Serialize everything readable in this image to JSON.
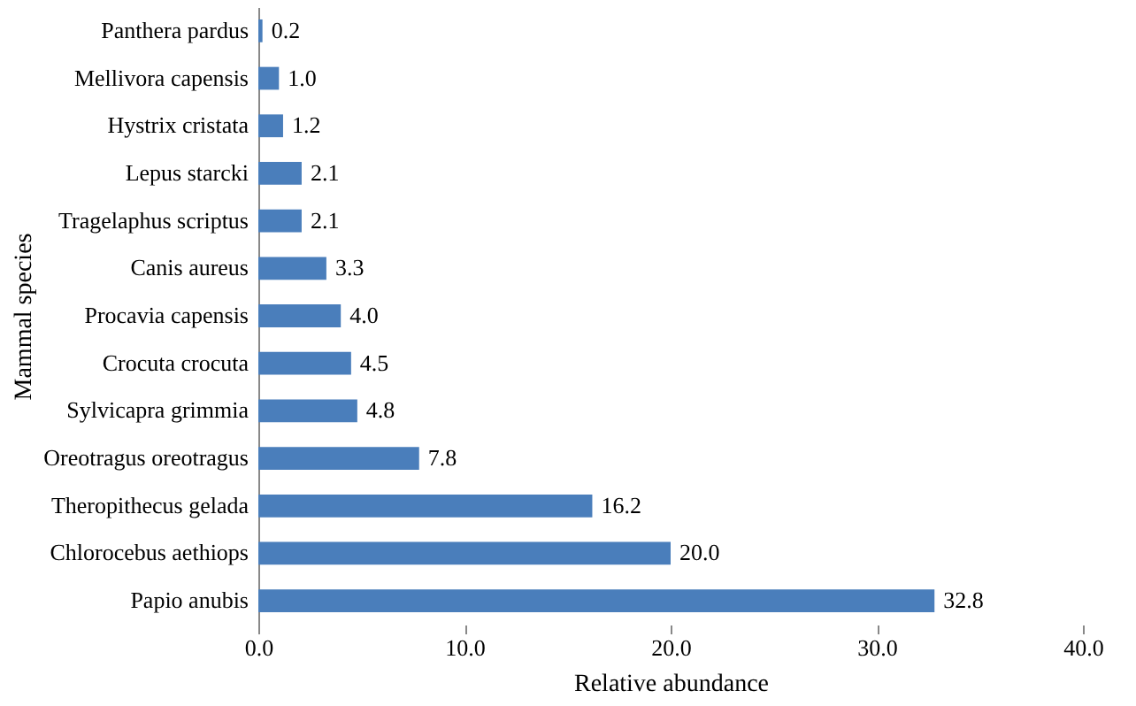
{
  "chart_data": {
    "type": "bar",
    "orientation": "horizontal",
    "xlabel": "Relative abundance",
    "ylabel": "Mammal species",
    "categories": [
      "Panthera pardus",
      "Mellivora capensis",
      "Hystrix cristata",
      "Lepus starcki",
      "Tragelaphus scriptus",
      "Canis aureus",
      "Procavia capensis",
      "Crocuta crocuta",
      "Sylvicapra grimmia",
      "Oreotragus oreotragus",
      "Theropithecus gelada",
      "Chlorocebus aethiops",
      "Papio anubis"
    ],
    "values": [
      0.2,
      1.0,
      1.2,
      2.1,
      2.1,
      3.3,
      4.0,
      4.5,
      4.8,
      7.8,
      16.2,
      20.0,
      32.8
    ],
    "value_labels": [
      "0.2",
      "1.0",
      "1.2",
      "2.1",
      "2.1",
      "3.3",
      "4.0",
      "4.5",
      "4.8",
      "7.8",
      "16.2",
      "20.0",
      "32.8"
    ],
    "color": "#4a7ebb",
    "xlim": [
      0,
      40
    ],
    "xticks": [
      {
        "value": 0,
        "label": "0.0"
      },
      {
        "value": 10,
        "label": "10.0"
      },
      {
        "value": 20,
        "label": "20.0"
      },
      {
        "value": 30,
        "label": "30.0"
      },
      {
        "value": 40,
        "label": "40.0"
      }
    ],
    "grid": false
  }
}
